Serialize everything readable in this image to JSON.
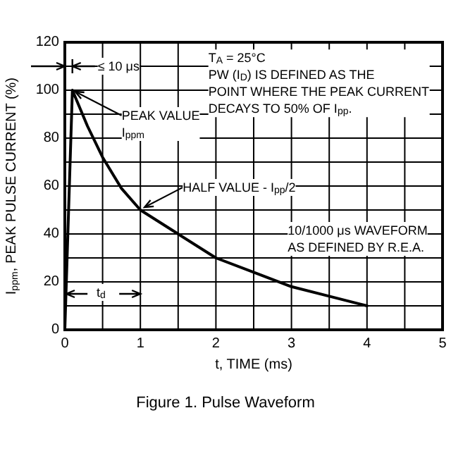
{
  "chart_data": {
    "type": "line",
    "xlabel": "t, TIME (ms)",
    "ylabel": "I$_{ppm}$, PEAK PULSE CURRENT (%)",
    "x": [
      0,
      0.1,
      0.3,
      0.5,
      0.75,
      1,
      1.5,
      2,
      2.5,
      3,
      3.5,
      4
    ],
    "series": [
      {
        "color": "#000000",
        "values": [
          0,
          100,
          85,
          72,
          59,
          50,
          40,
          30,
          24,
          18,
          14,
          10
        ]
      }
    ],
    "xlim": [
      0,
      5
    ],
    "xticks": [
      0,
      {
        "value": 0.5,
        "label": null
      },
      1,
      {
        "value": 1.5,
        "label": null
      },
      2,
      {
        "value": 2.5,
        "label": null
      },
      3,
      {
        "value": 3.5,
        "label": null
      },
      4,
      {
        "value": 4.5,
        "label": null
      },
      5
    ],
    "ylim": [
      0,
      120
    ],
    "yticks": [
      0,
      {
        "value": 10,
        "label": null
      },
      20,
      {
        "value": 30,
        "label": null
      },
      40,
      {
        "value": 50,
        "label": null
      },
      60,
      {
        "value": 70,
        "label": null
      },
      80,
      {
        "value": 90,
        "label": null
      },
      100,
      {
        "value": 110,
        "label": null
      },
      120
    ],
    "grid": true,
    "marker": "none",
    "line_style": "solid",
    "annotations": [
      "≤ 10 μs",
      "T$_{A}$ = 25°C\nPW (I$_{D}$) IS DEFINED AS THE\nPOINT WHERE THE PEAK CURRENT\nDECAYS TO 50% OF I$_{pp}$.",
      {
        "text": "PEAK VALUE\nI$_{ppm}$",
        "x": 0.1,
        "y": 100
      },
      {
        "text": "HALF VALUE - I$_{pp}$/2",
        "x": 1,
        "y": 50
      },
      "10/1000 μs WAVEFORM\nAS DEFINED BY R.E.A.",
      "t$_{d}$",
      "Figure 1. Pulse Waveform"
    ]
  }
}
